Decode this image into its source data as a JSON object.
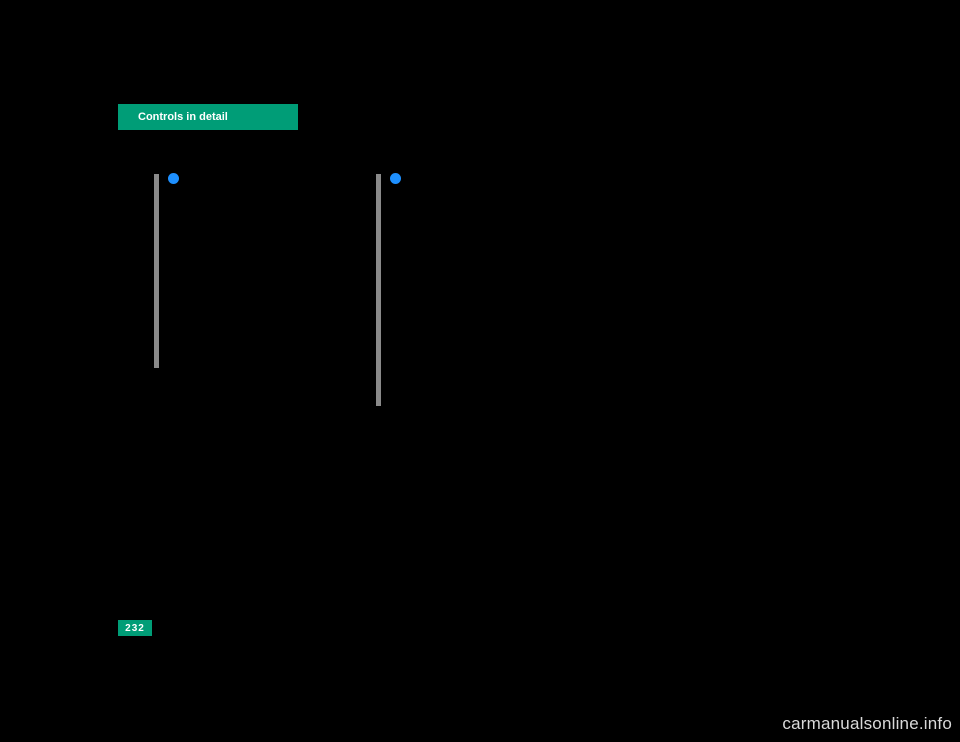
{
  "header": {
    "tab_label": "Controls in detail"
  },
  "page_number": "232",
  "columns": {
    "col1": {
      "body": ""
    },
    "col2": {
      "body": ""
    }
  },
  "watermark": "carmanualsonline.info",
  "colors": {
    "accent": "#009d77",
    "bullet": "#1e90ff",
    "vbar": "#8a8a8a",
    "bg": "#000000",
    "watermark": "#d9d9d9"
  }
}
